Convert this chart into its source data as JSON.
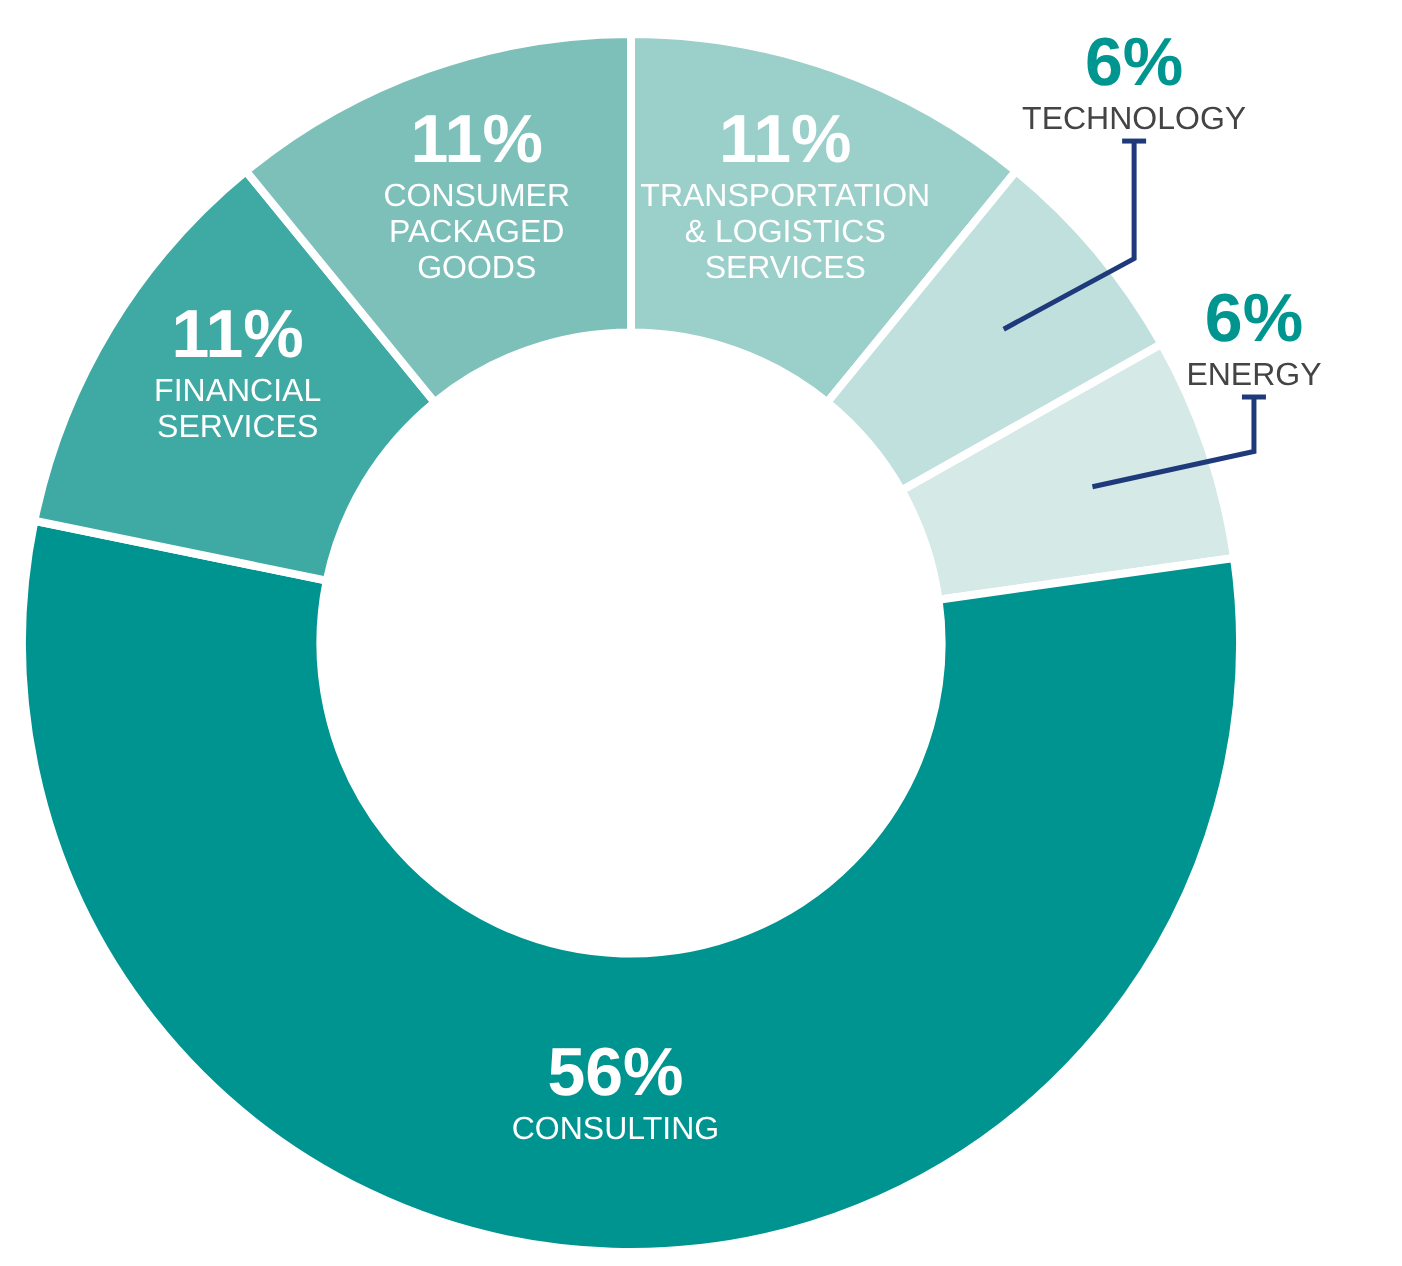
{
  "chart_data": {
    "type": "donut",
    "categories": [
      "TRANSPORTATION & LOGISTICS SERVICES",
      "TECHNOLOGY",
      "ENERGY",
      "CONSULTING",
      "FINANCIAL SERVICES",
      "CONSUMER PACKAGED GOODS"
    ],
    "values": [
      11,
      6,
      6,
      56,
      11,
      11
    ],
    "value_labels": [
      "11%",
      "6%",
      "6%",
      "56%",
      "11%",
      "11%"
    ],
    "colors": [
      "#9bcfca",
      "#bfe0dd",
      "#d5e9e7",
      "#009490",
      "#3fa9a3",
      "#7dc0ba"
    ],
    "legend": false
  }
}
